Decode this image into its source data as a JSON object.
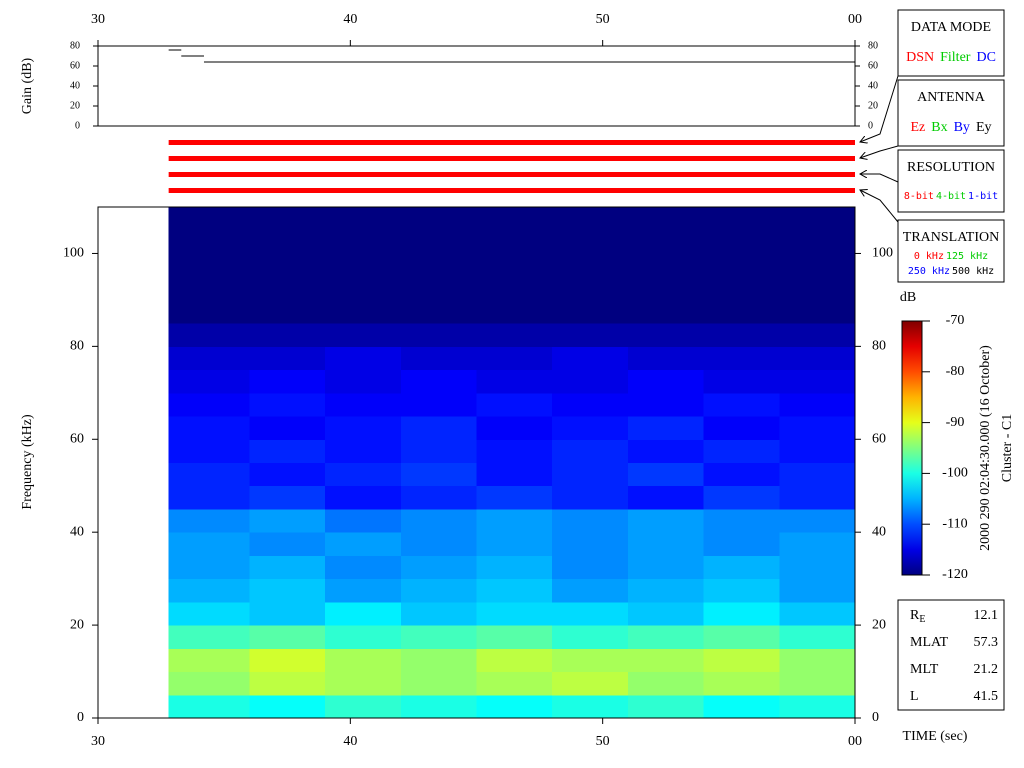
{
  "chart_data": [
    {
      "type": "step",
      "ylabel": "Gain (dB)",
      "xlim": [
        30,
        60
      ],
      "xticks": [
        30,
        40,
        50,
        {
          "value": 60,
          "label": "00"
        }
      ],
      "ylim": [
        0,
        80
      ],
      "yticks": [
        0,
        20,
        40,
        60,
        80
      ],
      "x": [
        32.8,
        33.3,
        34.2
      ],
      "values": [
        76,
        70,
        64
      ],
      "color": "#000000"
    },
    {
      "type": "status",
      "xlim": [
        30,
        60
      ],
      "bars": [
        {
          "start": 32.8,
          "end": 60,
          "color": "#ff0000"
        },
        {
          "start": 32.8,
          "end": 60,
          "color": "#ff0000"
        },
        {
          "start": 32.8,
          "end": 60,
          "color": "#ff0000"
        },
        {
          "start": 32.8,
          "end": 60,
          "color": "#ff0000"
        }
      ]
    },
    {
      "type": "heatmap",
      "ylabel": "Frequency (kHz)",
      "xlabel": "TIME (sec)",
      "xlim": [
        30,
        60
      ],
      "xticks": [
        30,
        40,
        50,
        {
          "value": 60,
          "label": "00"
        }
      ],
      "ylim": [
        0,
        110
      ],
      "yticks": [
        0,
        20,
        40,
        60,
        80,
        100
      ],
      "x_edges": [
        32.8,
        36,
        39,
        42,
        45,
        48,
        51,
        54,
        57,
        60
      ],
      "y_edges": [
        0,
        5,
        10,
        15,
        20,
        25,
        30,
        35,
        40,
        45,
        50,
        55,
        60,
        65,
        70,
        75,
        80,
        85,
        90,
        95,
        100,
        105,
        110
      ],
      "z": [
        [
          -100,
          -101,
          -99,
          -100,
          -101,
          -100,
          -99,
          -101,
          -100
        ],
        [
          -94,
          -92,
          -93,
          -94,
          -93,
          -92,
          -94,
          -93,
          -94
        ],
        [
          -93,
          -91,
          -93,
          -94,
          -92,
          -93,
          -93,
          -92,
          -94
        ],
        [
          -98,
          -97,
          -99,
          -98,
          -97,
          -99,
          -98,
          -97,
          -99
        ],
        [
          -103,
          -104,
          -102,
          -104,
          -103,
          -103,
          -104,
          -102,
          -104
        ],
        [
          -105,
          -104,
          -106,
          -105,
          -104,
          -106,
          -105,
          -104,
          -106
        ],
        [
          -106,
          -105,
          -107,
          -106,
          -105,
          -107,
          -106,
          -105,
          -106
        ],
        [
          -106,
          -107,
          -106,
          -107,
          -106,
          -107,
          -106,
          -107,
          -106
        ],
        [
          -107,
          -106,
          -108,
          -107,
          -106,
          -107,
          -106,
          -107,
          -107
        ],
        [
          -112,
          -111,
          -113,
          -112,
          -111,
          -112,
          -113,
          -111,
          -112
        ],
        [
          -112,
          -113,
          -112,
          -111,
          -113,
          -112,
          -111,
          -113,
          -112
        ],
        [
          -113,
          -112,
          -113,
          -112,
          -113,
          -112,
          -113,
          -112,
          -113
        ],
        [
          -113,
          -114,
          -113,
          -112,
          -114,
          -113,
          -112,
          -114,
          -113
        ],
        [
          -114,
          -113,
          -114,
          -114,
          -113,
          -114,
          -114,
          -113,
          -114
        ],
        [
          -115,
          -114,
          -115,
          -114,
          -115,
          -115,
          -114,
          -115,
          -115
        ],
        [
          -116,
          -116,
          -115,
          -116,
          -116,
          -115,
          -116,
          -116,
          -116
        ],
        [
          -118,
          -118,
          -118,
          -118,
          -118,
          -118,
          -118,
          -118,
          -118
        ],
        [
          -120,
          -120,
          -120,
          -120,
          -120,
          -120,
          -120,
          -120,
          -120
        ],
        [
          -120,
          -120,
          -120,
          -120,
          -120,
          -120,
          -120,
          -120,
          -120
        ],
        [
          -120,
          -120,
          -120,
          -120,
          -120,
          -120,
          -120,
          -120,
          -120
        ],
        [
          -120,
          -120,
          -120,
          -120,
          -120,
          -120,
          -120,
          -120,
          -120
        ],
        [
          -120,
          -120,
          -120,
          -120,
          -120,
          -120,
          -120,
          -120,
          -120
        ]
      ],
      "colorbar": {
        "label": "dB",
        "lim": [
          -120,
          -70
        ],
        "ticks": [
          -70,
          -80,
          -90,
          -100,
          -110,
          -120
        ]
      }
    }
  ],
  "caption": "2000 290 02:04:30.000 (16 October)",
  "spacecraft": "Cluster - C1",
  "legend_boxes": [
    {
      "title": "DATA MODE",
      "items": [
        {
          "text": "DSN",
          "color": "#ff0000"
        },
        {
          "text": "Filter",
          "color": "#00cc00"
        },
        {
          "text": "DC",
          "color": "#0000ff"
        }
      ]
    },
    {
      "title": "ANTENNA",
      "items": [
        {
          "text": "Ez",
          "color": "#ff0000"
        },
        {
          "text": "Bx",
          "color": "#00cc00"
        },
        {
          "text": "By",
          "color": "#0000ff"
        },
        {
          "text": "Ey",
          "color": "#000000"
        }
      ]
    },
    {
      "title": "RESOLUTION",
      "items": [
        {
          "text": "8-bit",
          "color": "#ff0000"
        },
        {
          "text": "4-bit",
          "color": "#00cc00"
        },
        {
          "text": "1-bit",
          "color": "#0000ff"
        }
      ]
    },
    {
      "title": "TRANSLATION",
      "items": [
        {
          "text": "0 kHz",
          "color": "#ff0000"
        },
        {
          "text": "125 kHz",
          "color": "#00cc00"
        },
        {
          "text": "250 kHz",
          "color": "#0000ff"
        },
        {
          "text": "500 kHz",
          "color": "#000000"
        }
      ]
    }
  ],
  "orbit": [
    {
      "label": "R",
      "sub": "E",
      "value": 12.1
    },
    {
      "label": "MLAT",
      "value": 57.3
    },
    {
      "label": "MLT",
      "value": 21.2
    },
    {
      "label": "L",
      "value": 41.5
    }
  ]
}
